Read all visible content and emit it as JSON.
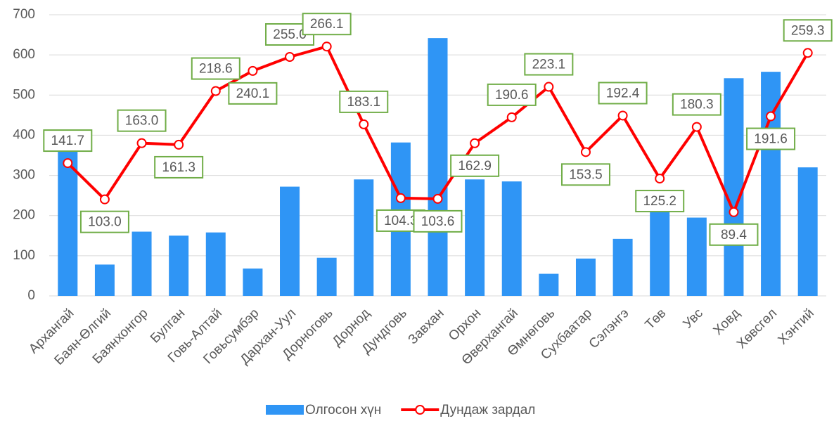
{
  "chart_data": {
    "type": "bar+line",
    "categories": [
      "Архангай",
      "Баян-Өлгий",
      "Баянхонгор",
      "Булган",
      "Говь-Алтай",
      "Говьсумбэр",
      "Дархан-Уул",
      "Дорноговь",
      "Дорнод",
      "Дундговь",
      "Завхан",
      "Орхон",
      "Өверхангай",
      "Өмнөговь",
      "Сухбаатар",
      "Сэлэнгэ",
      "Төв",
      "Увс",
      "Ховд",
      "Хөвсгөл",
      "Хэнтий"
    ],
    "series": [
      {
        "name": "Олгосон хүн",
        "type": "bar",
        "color": "#2f95f5",
        "values": [
          360,
          78,
          160,
          150,
          158,
          68,
          272,
          95,
          290,
          382,
          642,
          290,
          285,
          55,
          93,
          142,
          242,
          195,
          542,
          558,
          320
        ]
      },
      {
        "name": "Дундаж зардал",
        "type": "line",
        "color": "#ff0000",
        "axis": "y2",
        "values": [
          141.7,
          103.0,
          163.0,
          161.3,
          218.6,
          240.1,
          255.0,
          266.1,
          183.1,
          104.3,
          103.6,
          162.9,
          190.6,
          223.1,
          153.5,
          192.4,
          125.2,
          180.3,
          89.4,
          191.6,
          259.3
        ],
        "value_labels": [
          "141.7",
          "103.0",
          "163.0",
          "161.3",
          "218.6",
          "240.1",
          "255.0",
          "266.1",
          "183.1",
          "104.3",
          "103.6",
          "162.9",
          "190.6",
          "223.1",
          "153.5",
          "192.4",
          "125.2",
          "180.3",
          "89.4",
          "191.6",
          "259.3"
        ]
      }
    ],
    "ylim": [
      0,
      700
    ],
    "yticks": [
      0,
      100,
      200,
      300,
      400,
      500,
      600,
      700
    ],
    "y2lim": [
      0,
      300
    ],
    "grid": true,
    "legend": "bottom"
  }
}
